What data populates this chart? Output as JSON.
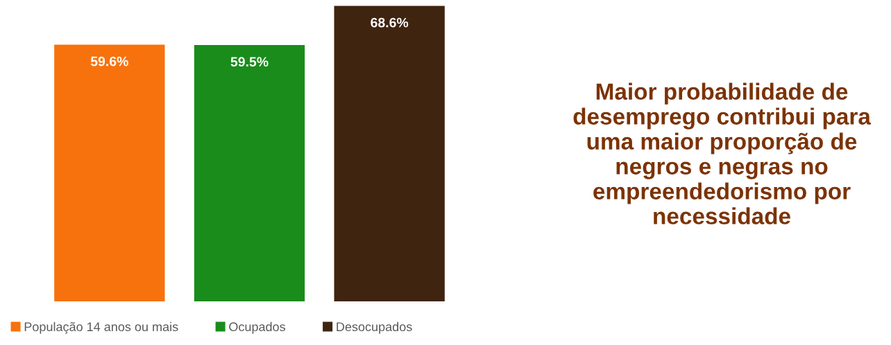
{
  "chart_data": {
    "type": "bar",
    "categories": [
      null,
      null,
      null
    ],
    "series": [
      {
        "name": "População 14 anos ou mais",
        "color": "#f7720d",
        "values": [
          59.6,
          null,
          null
        ],
        "value_labels": [
          "59.6%",
          null,
          null
        ]
      },
      {
        "name": "Ocupados",
        "color": "#1a8c1c",
        "values": [
          null,
          59.5,
          null
        ],
        "value_labels": [
          null,
          "59.5%",
          null
        ]
      },
      {
        "name": "Desocupados",
        "color": "#3f2410",
        "values": [
          null,
          null,
          68.6
        ],
        "value_labels": [
          null,
          null,
          "68.6%"
        ]
      }
    ],
    "stacked": true,
    "legend": "bottom left",
    "annotations": [
      "Maior probabilidade de desemprego contribui para uma maior proporção de negros e negras no empreendedorismo por necessidade"
    ]
  }
}
